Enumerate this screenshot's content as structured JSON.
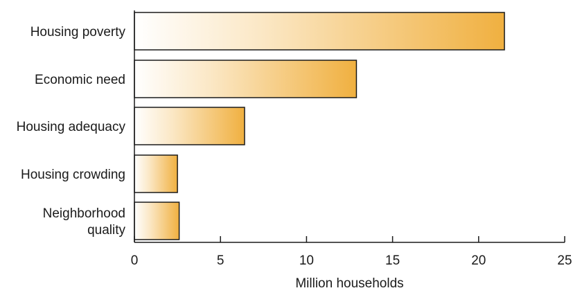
{
  "chart_data": {
    "type": "bar",
    "orientation": "horizontal",
    "categories": [
      "Housing poverty",
      "Economic need",
      "Housing adequacy",
      "Housing crowding",
      "Neighborhood quality"
    ],
    "category_lines": [
      [
        "Housing poverty"
      ],
      [
        "Economic need"
      ],
      [
        "Housing adequacy"
      ],
      [
        "Housing crowding"
      ],
      [
        "Neighborhood",
        "quality"
      ]
    ],
    "values": [
      21.5,
      12.9,
      6.4,
      2.5,
      2.6
    ],
    "xlabel": "Million households",
    "ylabel": "",
    "title": "",
    "xlim": [
      0,
      25
    ],
    "xticks": [
      0,
      5,
      10,
      15,
      20,
      25
    ],
    "grid": false,
    "bar_fill": {
      "from": "#ffffff",
      "to": "#f0b040"
    },
    "bar_stroke": "#1a1a1a"
  }
}
